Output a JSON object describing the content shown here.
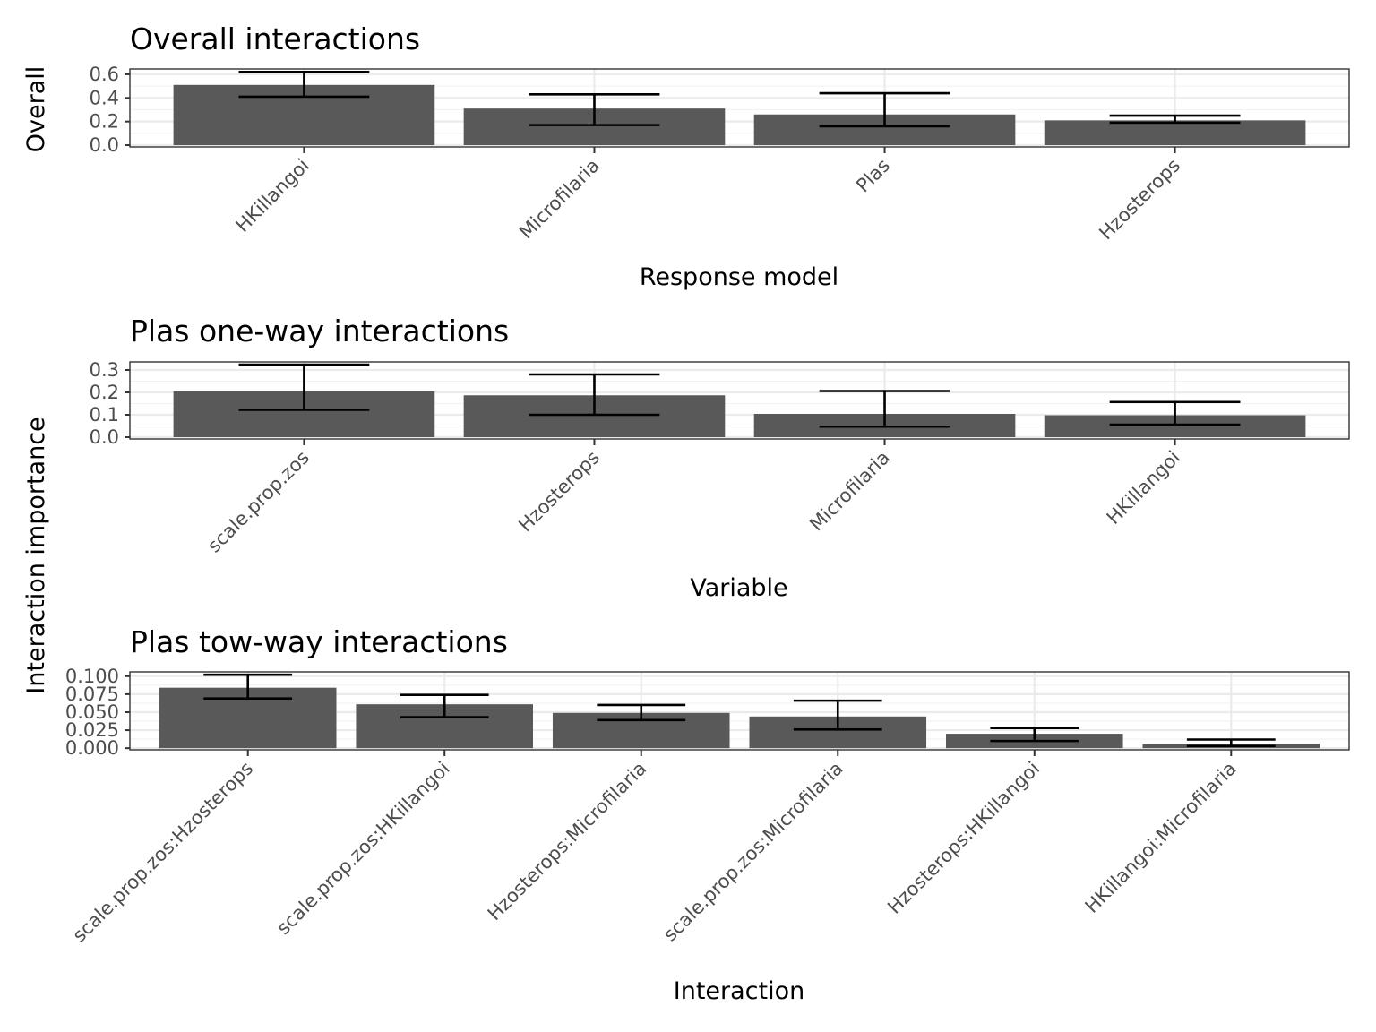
{
  "figure": {
    "shared_ylabel": "Interaction importance"
  },
  "chart_data": [
    {
      "type": "bar",
      "title": "Overall interactions",
      "xlabel": "Response model",
      "ylabel": "Overall",
      "categories": [
        "HKillangoi",
        "Microfilaria",
        "Plas",
        "Hzosterops"
      ],
      "values": [
        0.51,
        0.31,
        0.26,
        0.21
      ],
      "error_low": [
        0.41,
        0.17,
        0.16,
        0.19
      ],
      "error_high": [
        0.62,
        0.43,
        0.44,
        0.25
      ],
      "ylim": [
        -0.015,
        0.645
      ],
      "yticks": [
        0.0,
        0.2,
        0.4,
        0.6
      ],
      "ytick_labels": [
        "0.0",
        "0.2",
        "0.4",
        "0.6"
      ],
      "grid": true
    },
    {
      "type": "bar",
      "title": "Plas one-way interactions",
      "xlabel": "Variable",
      "ylabel": "Interaction importance",
      "categories": [
        "scale.prop.zos",
        "Hzosterops",
        "Microfilaria",
        "HKillangoi"
      ],
      "values": [
        0.205,
        0.187,
        0.104,
        0.098
      ],
      "error_low": [
        0.122,
        0.1,
        0.047,
        0.056
      ],
      "error_high": [
        0.324,
        0.28,
        0.206,
        0.157
      ],
      "ylim": [
        -0.008,
        0.336
      ],
      "yticks": [
        0.0,
        0.1,
        0.2,
        0.3
      ],
      "ytick_labels": [
        "0.0",
        "0.1",
        "0.2",
        "0.3"
      ],
      "grid": true
    },
    {
      "type": "bar",
      "title": "Plas tow-way interactions",
      "xlabel": "Interaction",
      "ylabel": "Interaction importance",
      "categories": [
        "scale.prop.zos:Hzosterops",
        "scale.prop.zos:HKillangoi",
        "Hzosterops:Microfilaria",
        "scale.prop.zos:Microfilaria",
        "Hzosterops:HKillangoi",
        "HKillangoi:Microfilaria"
      ],
      "values": [
        0.084,
        0.061,
        0.049,
        0.044,
        0.02,
        0.006
      ],
      "error_low": [
        0.069,
        0.043,
        0.039,
        0.026,
        0.01,
        0.003
      ],
      "error_high": [
        0.102,
        0.074,
        0.06,
        0.066,
        0.028,
        0.012
      ],
      "ylim": [
        -0.0023,
        0.106
      ],
      "yticks": [
        0.0,
        0.025,
        0.05,
        0.075,
        0.1
      ],
      "ytick_labels": [
        "0.000",
        "0.025",
        "0.050",
        "0.075",
        "0.100"
      ],
      "grid": true
    }
  ]
}
